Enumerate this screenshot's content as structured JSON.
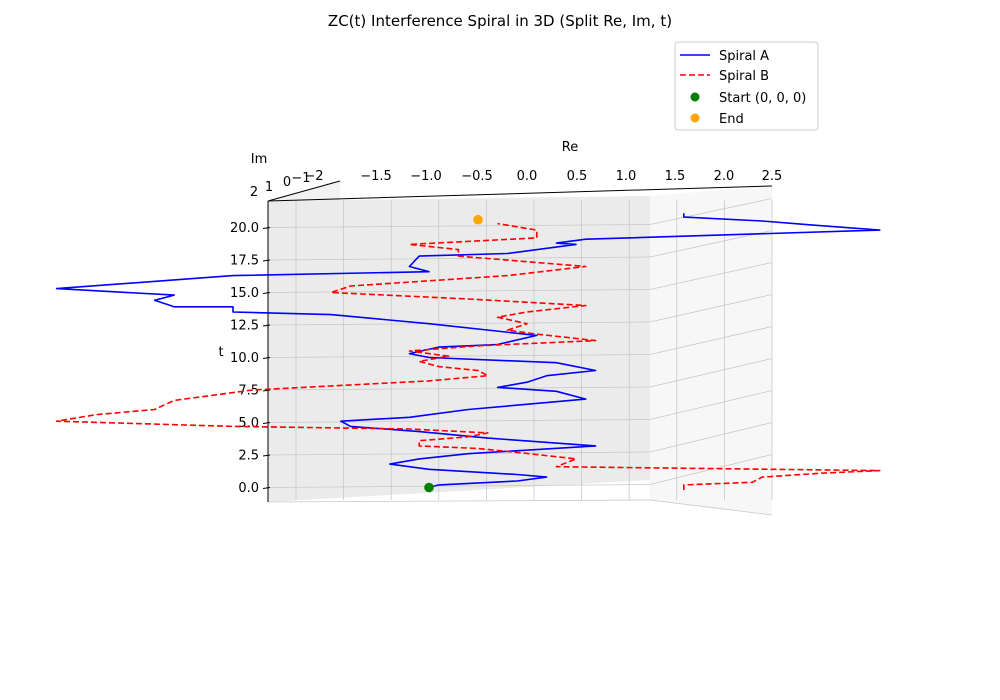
{
  "chart_data": {
    "type": "line",
    "title": "ZC(t) Interference Spiral in 3D (Split Re, Im, t)",
    "projection": "3d",
    "axes": {
      "x": {
        "label": "Re",
        "range": [
          -2.5,
          2.5
        ],
        "ticks": [
          "−2",
          "−1.5",
          "−1.0",
          "−0.5",
          "0.0",
          "0.5",
          "1.0",
          "1.5",
          "2.0",
          "2.5"
        ]
      },
      "y": {
        "label": "Im",
        "ticks": [
          "2",
          "1",
          "0",
          "−1"
        ]
      },
      "z": {
        "label": "t",
        "range": [
          -1,
          21.5
        ],
        "ticks": [
          "0.0",
          "2.5",
          "5.0",
          "7.5",
          "10.0",
          "12.5",
          "15.0",
          "17.5",
          "20.0"
        ]
      }
    },
    "grid": true,
    "legend": {
      "position": "top-right",
      "entries": [
        "Spiral A",
        "Spiral B",
        "Start (0, 0, 0)",
        "End"
      ]
    },
    "series": [
      {
        "name": "Spiral A",
        "color": "#0000ff",
        "style": "solid",
        "points": [
          [
            -0.5,
            0.0
          ],
          [
            -0.45,
            0.2
          ],
          [
            -0.05,
            0.5
          ],
          [
            0.1,
            0.8
          ],
          [
            -0.05,
            1.0
          ],
          [
            -0.5,
            1.4
          ],
          [
            -0.7,
            1.8
          ],
          [
            -0.55,
            2.2
          ],
          [
            -0.3,
            2.6
          ],
          [
            0.35,
            3.2
          ],
          [
            -0.2,
            3.8
          ],
          [
            -0.55,
            4.3
          ],
          [
            -0.9,
            4.7
          ],
          [
            -0.95,
            5.1
          ],
          [
            -0.6,
            5.4
          ],
          [
            -0.3,
            6.0
          ],
          [
            0.3,
            6.8
          ],
          [
            0.15,
            7.4
          ],
          [
            -0.15,
            7.7
          ],
          [
            0.0,
            8.1
          ],
          [
            0.1,
            8.6
          ],
          [
            0.35,
            9.0
          ],
          [
            0.15,
            9.6
          ],
          [
            -0.5,
            10.0
          ],
          [
            -0.6,
            10.3
          ],
          [
            -0.45,
            10.8
          ],
          [
            -0.15,
            11.0
          ],
          [
            0.05,
            11.7
          ],
          [
            -0.5,
            12.6
          ],
          [
            -1.0,
            13.3
          ],
          [
            -1.5,
            13.5
          ],
          [
            -1.5,
            13.9
          ],
          [
            -1.8,
            13.9
          ],
          [
            -1.9,
            14.4
          ],
          [
            -1.8,
            14.8
          ],
          [
            -2.4,
            15.3
          ],
          [
            -1.5,
            16.3
          ],
          [
            -0.5,
            16.6
          ],
          [
            -0.6,
            17.0
          ],
          [
            -0.55,
            17.8
          ],
          [
            -0.1,
            18.0
          ],
          [
            0.25,
            18.7
          ],
          [
            0.15,
            18.8
          ],
          [
            0.3,
            19.1
          ],
          [
            1.8,
            19.8
          ],
          [
            1.45,
            20.2
          ],
          [
            1.2,
            20.5
          ],
          [
            0.8,
            20.8
          ],
          [
            0.8,
            21.1
          ]
        ]
      },
      {
        "name": "Spiral B",
        "color": "#ff0000",
        "style": "dashed",
        "points": [
          [
            0.8,
            -0.2
          ],
          [
            0.8,
            0.2
          ],
          [
            1.15,
            0.4
          ],
          [
            1.2,
            0.8
          ],
          [
            1.5,
            1.1
          ],
          [
            1.8,
            1.3
          ],
          [
            0.15,
            1.6
          ],
          [
            0.25,
            2.2
          ],
          [
            -0.05,
            2.7
          ],
          [
            -0.25,
            3.0
          ],
          [
            -0.55,
            3.2
          ],
          [
            -0.55,
            3.6
          ],
          [
            -0.3,
            3.9
          ],
          [
            -0.2,
            4.2
          ],
          [
            -0.6,
            4.5
          ],
          [
            -1.5,
            4.7
          ],
          [
            -2.4,
            5.1
          ],
          [
            -2.2,
            5.6
          ],
          [
            -1.9,
            6.0
          ],
          [
            -1.8,
            6.7
          ],
          [
            -1.4,
            7.5
          ],
          [
            -0.5,
            8.2
          ],
          [
            -0.2,
            8.6
          ],
          [
            -0.25,
            9.0
          ],
          [
            -0.45,
            9.3
          ],
          [
            -0.55,
            9.7
          ],
          [
            -0.4,
            10.1
          ],
          [
            -0.6,
            10.5
          ],
          [
            -0.25,
            10.9
          ],
          [
            0.35,
            11.3
          ],
          [
            0.05,
            11.8
          ],
          [
            -0.1,
            12.1
          ],
          [
            0.0,
            12.6
          ],
          [
            -0.15,
            13.1
          ],
          [
            0.0,
            13.5
          ],
          [
            0.3,
            14.0
          ],
          [
            -0.3,
            14.5
          ],
          [
            -1.0,
            15.0
          ],
          [
            -0.9,
            15.5
          ],
          [
            -0.1,
            16.3
          ],
          [
            0.3,
            17.0
          ],
          [
            -0.35,
            17.8
          ],
          [
            -0.35,
            18.3
          ],
          [
            -0.6,
            18.7
          ],
          [
            0.05,
            19.2
          ],
          [
            0.05,
            19.8
          ],
          [
            -0.15,
            20.3
          ]
        ]
      },
      {
        "name": "Start (0, 0, 0)",
        "color": "#008000",
        "style": "marker",
        "points": [
          [
            -0.5,
            0.0
          ]
        ]
      },
      {
        "name": "End",
        "color": "#ffa500",
        "style": "marker",
        "points": [
          [
            -0.25,
            20.6
          ]
        ]
      }
    ]
  }
}
